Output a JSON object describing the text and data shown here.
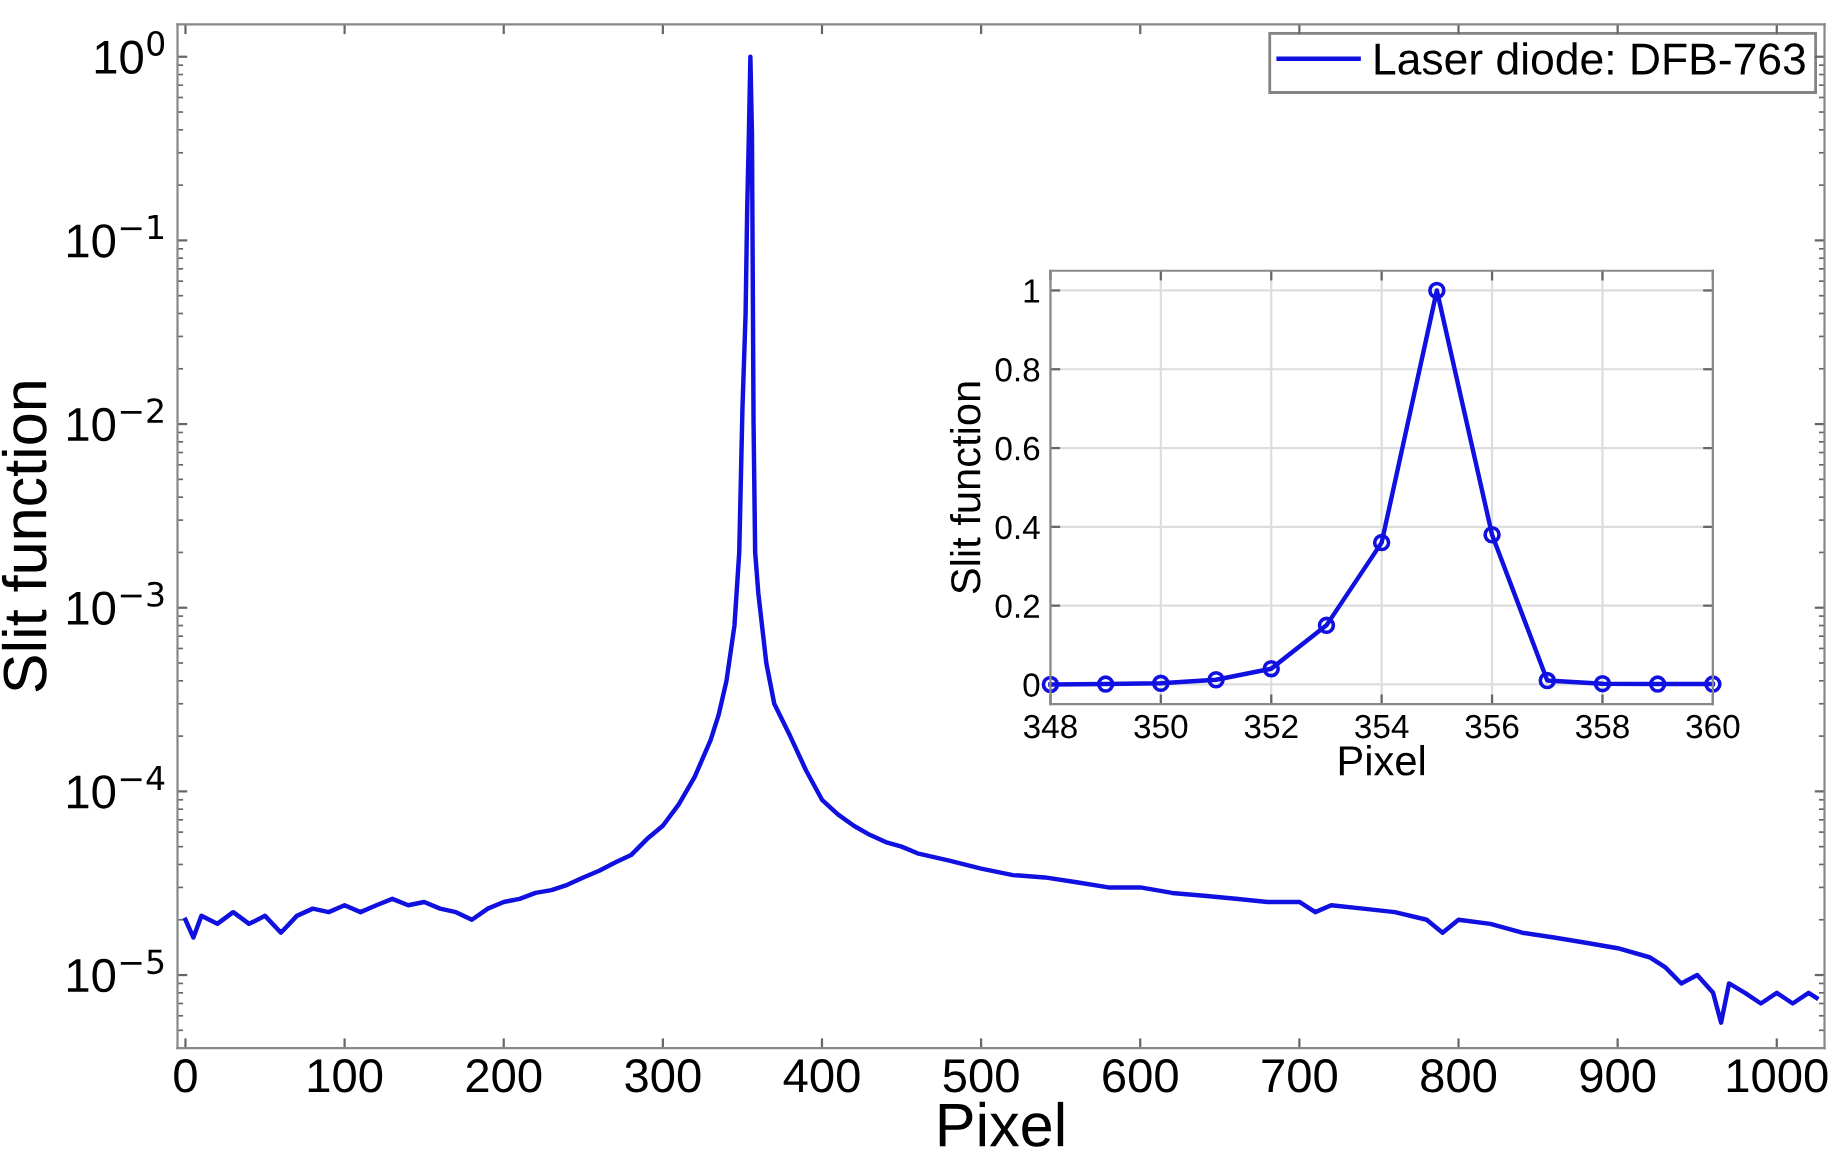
{
  "chart_data": [
    {
      "type": "line",
      "xlabel": "Pixel",
      "ylabel": "Slit function",
      "log": "y",
      "legend": "top right",
      "grid": false,
      "line_style": "solid",
      "xlim": [
        -5,
        1030
      ],
      "ylim": [
        4e-06,
        1.5
      ],
      "xticks": [
        0,
        100,
        200,
        300,
        400,
        500,
        600,
        700,
        800,
        900,
        1000
      ],
      "yticks": [
        {
          "value": 1e-05,
          "label": "10$^{−5}$"
        },
        {
          "value": 0.0001,
          "label": "10$^{−4}$"
        },
        {
          "value": 0.001,
          "label": "10$^{−3}$"
        },
        {
          "value": 0.01,
          "label": "10$^{−2}$"
        },
        {
          "value": 0.1,
          "label": "10$^{−1}$"
        },
        {
          "value": 1,
          "label": "10$^{0}$"
        }
      ],
      "series": [
        {
          "name": "Laser diode: DFB-763",
          "color": "#1010e0",
          "x": [
            0,
            5,
            10,
            20,
            30,
            40,
            50,
            60,
            70,
            80,
            90,
            100,
            110,
            120,
            130,
            140,
            150,
            160,
            170,
            180,
            190,
            200,
            210,
            220,
            230,
            240,
            250,
            260,
            270,
            280,
            290,
            300,
            310,
            320,
            330,
            335,
            340,
            345,
            348,
            350,
            352,
            353,
            354,
            355,
            356,
            357,
            358,
            360,
            365,
            370,
            380,
            390,
            400,
            410,
            420,
            430,
            440,
            450,
            460,
            480,
            500,
            520,
            540,
            560,
            580,
            600,
            620,
            640,
            660,
            680,
            700,
            710,
            720,
            740,
            760,
            780,
            790,
            800,
            820,
            840,
            860,
            880,
            900,
            920,
            930,
            940,
            950,
            960,
            965,
            970,
            980,
            990,
            1000,
            1010,
            1020,
            1025
          ],
          "values": [
            2e-05,
            1.6e-05,
            2.1e-05,
            1.9e-05,
            2.2e-05,
            1.9e-05,
            2.1e-05,
            1.7e-05,
            2.1e-05,
            2.3e-05,
            2.2e-05,
            2.4e-05,
            2.2e-05,
            2.4e-05,
            2.6e-05,
            2.4e-05,
            2.5e-05,
            2.3e-05,
            2.2e-05,
            2e-05,
            2.3e-05,
            2.5e-05,
            2.6e-05,
            2.8e-05,
            2.9e-05,
            3.1e-05,
            3.4e-05,
            3.7e-05,
            4.1e-05,
            4.5e-05,
            5.5e-05,
            6.5e-05,
            8.5e-05,
            0.00012,
            0.00019,
            0.00026,
            0.0004,
            0.0008,
            0.002,
            0.012,
            0.04,
            0.15,
            0.36,
            1.0,
            0.38,
            0.01,
            0.002,
            0.0012,
            0.0005,
            0.0003,
            0.0002,
            0.00013,
            9e-05,
            7.5e-05,
            6.5e-05,
            5.8e-05,
            5.3e-05,
            5e-05,
            4.6e-05,
            4.2e-05,
            3.8e-05,
            3.5e-05,
            3.4e-05,
            3.2e-05,
            3e-05,
            3e-05,
            2.8e-05,
            2.7e-05,
            2.6e-05,
            2.5e-05,
            2.5e-05,
            2.2e-05,
            2.4e-05,
            2.3e-05,
            2.2e-05,
            2e-05,
            1.7e-05,
            2e-05,
            1.9e-05,
            1.7e-05,
            1.6e-05,
            1.5e-05,
            1.4e-05,
            1.25e-05,
            1.1e-05,
            9e-06,
            1e-05,
            8e-06,
            5.5e-06,
            9e-06,
            8e-06,
            7e-06,
            8e-06,
            7e-06,
            8e-06,
            7.5e-06
          ]
        }
      ]
    },
    {
      "type": "line",
      "xlabel": "Pixel",
      "ylabel": "Slit function",
      "grid": true,
      "marker": "circle",
      "line_style": "solid",
      "xlim": [
        348,
        360
      ],
      "ylim": [
        -0.05,
        1.05
      ],
      "xticks": [
        348,
        350,
        352,
        354,
        356,
        358,
        360
      ],
      "yticks": [
        0,
        0.2,
        0.4,
        0.6,
        0.8,
        1
      ],
      "series": [
        {
          "color": "#1010e0",
          "x": [
            348,
            349,
            350,
            351,
            352,
            353,
            354,
            355,
            356,
            357,
            358,
            359,
            360
          ],
          "values": [
            0.0,
            0.001,
            0.003,
            0.012,
            0.04,
            0.15,
            0.36,
            1.0,
            0.38,
            0.01,
            0.002,
            0.001,
            0.001
          ]
        }
      ]
    }
  ]
}
